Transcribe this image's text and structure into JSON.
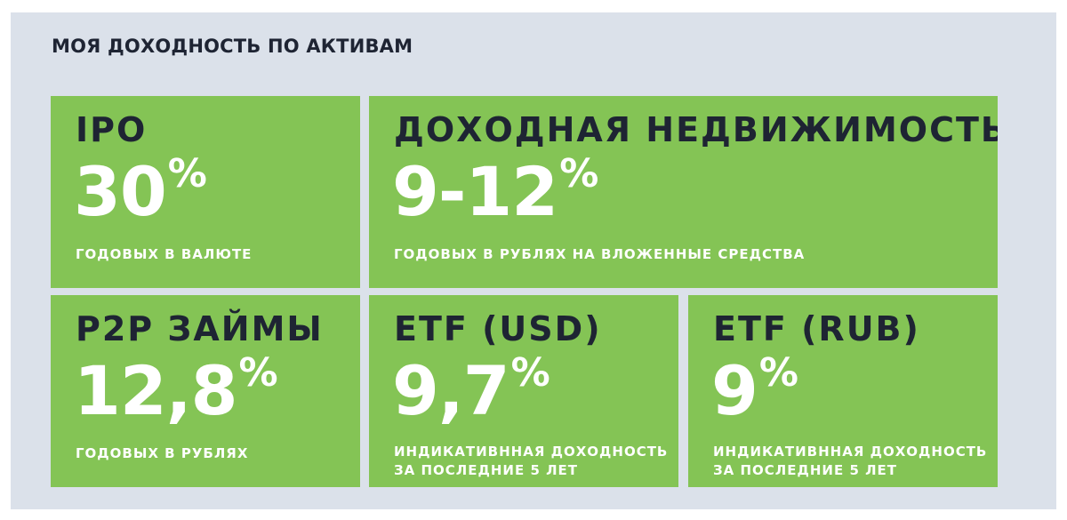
{
  "heading": "МОЯ ДОХОДНОСТЬ ПО АКТИВАМ",
  "cards": [
    {
      "name": "IPO",
      "value": "30",
      "unit": "%",
      "note_1": "ГОДОВЫХ В ВАЛЮТЕ",
      "note_2": ""
    },
    {
      "name": "ДОХОДНАЯ НЕДВИЖИМОСТЬ",
      "value": "9-12",
      "unit": "%",
      "note_1": "ГОДОВЫХ В РУБЛЯХ НА ВЛОЖЕННЫЕ СРЕДСТВА",
      "note_2": ""
    },
    {
      "name": "P2P ЗАЙМЫ",
      "value": "12,8",
      "unit": "%",
      "note_1": "ГОДОВЫХ В РУБЛЯХ",
      "note_2": ""
    },
    {
      "name": "ETF (USD)",
      "value": "9,7",
      "unit": "%",
      "note_1": "ИНДИКАТИВННАЯ ДОХОДНОСТЬ",
      "note_2": "ЗА ПОСЛЕДНИЕ 5 ЛЕТ"
    },
    {
      "name": "ETF (RUB)",
      "value": "9",
      "unit": "%",
      "note_1": "ИНДИКАТИВННАЯ ДОХОДНОСТЬ",
      "note_2": "ЗА ПОСЛЕДНИЕ 5 ЛЕТ"
    }
  ],
  "colors": {
    "card_bg": "#84c455",
    "panel_bg": "#dbe1ea",
    "title_text": "#1e2433",
    "value_text": "#ffffff"
  }
}
